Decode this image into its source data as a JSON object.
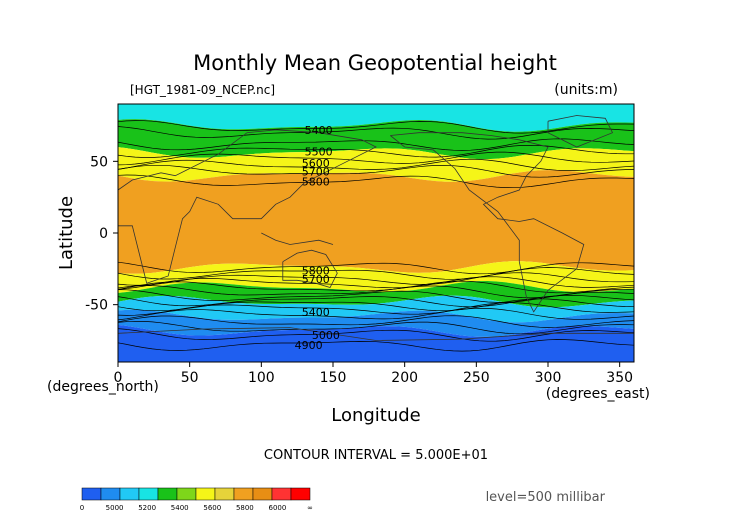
{
  "chart_data": {
    "type": "heatmap",
    "title": "Monthly Mean Geopotential height",
    "file_label": "[HGT_1981-09_NCEP.nc]",
    "units_label": "(units:m)",
    "xlabel": "Longitude",
    "ylabel": "Latitude",
    "x_units_label": "(degrees_east)",
    "y_units_label": "(degrees_north)",
    "xlim": [
      0,
      360
    ],
    "ylim": [
      -90,
      90
    ],
    "x_ticks": [
      "0",
      "50",
      "100",
      "150",
      "200",
      "250",
      "300",
      "350"
    ],
    "y_ticks": [
      "50",
      "0",
      "-50"
    ],
    "contour_interval": "CONTOUR INTERVAL = 5.000E+01",
    "level": "level=500 millibar",
    "colorbar_labels": [
      "0",
      "5000",
      "5200",
      "5400",
      "5600",
      "5800",
      "6000",
      "∞"
    ],
    "colorbar_colors": [
      "#1f5ff0",
      "#1f8cf0",
      "#21c9f5",
      "#18e4e4",
      "#19c219",
      "#7ed61a",
      "#f5f518",
      "#e6d33a",
      "#f0a020",
      "#e88e14",
      "#ff3333",
      "#ff0000"
    ],
    "contour_labels": [
      {
        "text": "5400",
        "lon": 140,
        "lat": 72
      },
      {
        "text": "5500",
        "lon": 140,
        "lat": 57
      },
      {
        "text": "5600",
        "lon": 138,
        "lat": 49
      },
      {
        "text": "5700",
        "lon": 138,
        "lat": 43
      },
      {
        "text": "5800",
        "lon": 138,
        "lat": 36
      },
      {
        "text": "5800",
        "lon": 138,
        "lat": -26
      },
      {
        "text": "5700",
        "lon": 138,
        "lat": -32
      },
      {
        "text": "5400",
        "lon": 138,
        "lat": -55
      },
      {
        "text": "5000",
        "lon": 145,
        "lat": -71
      },
      {
        "text": "4900",
        "lon": 133,
        "lat": -78
      }
    ],
    "bands": [
      {
        "lat_max": 90,
        "lat_min": 75,
        "value_range": "5200-5400",
        "color": "#18e4e4"
      },
      {
        "lat_max": 75,
        "lat_min": 56,
        "value_range": "5400-5600",
        "color": "#19c219"
      },
      {
        "lat_max": 56,
        "lat_min": 40,
        "value_range": "5600-5800",
        "color": "#f5f518"
      },
      {
        "lat_max": 40,
        "lat_min": -24,
        "value_range": "5800-6000",
        "color": "#f0a020"
      },
      {
        "lat_max": -24,
        "lat_min": -38,
        "value_range": "5600-5800",
        "color": "#f5f518"
      },
      {
        "lat_max": -38,
        "lat_min": -48,
        "value_range": "5400-5600",
        "color": "#19c219"
      },
      {
        "lat_max": -48,
        "lat_min": -58,
        "value_range": "5200-5400",
        "color": "#21c9f5"
      },
      {
        "lat_max": -58,
        "lat_min": -68,
        "value_range": "5000-5200",
        "color": "#1f8cf0"
      },
      {
        "lat_max": -68,
        "lat_min": -90,
        "value_range": "0-5000",
        "color": "#1f5ff0"
      }
    ],
    "grid": false,
    "legend": "bottom-left colorbar"
  }
}
